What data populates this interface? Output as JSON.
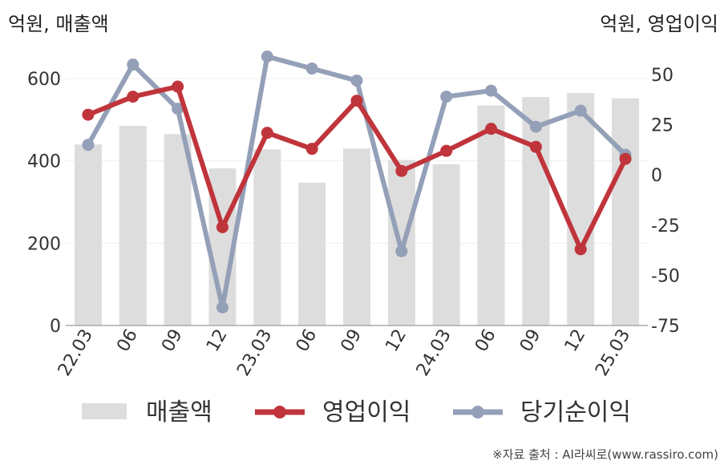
{
  "chart_data": {
    "type": "bar+line",
    "left_unit": "억원, 매출액",
    "right_unit": "억원, 영업이익",
    "categories": [
      "22.03",
      "06",
      "09",
      "12",
      "23.03",
      "06",
      "09",
      "12",
      "24.03",
      "06",
      "09",
      "12",
      "25.03"
    ],
    "left_axis": {
      "ylim": [
        0,
        600
      ],
      "ticks": [
        "0",
        "200",
        "400",
        "600"
      ]
    },
    "right_axis": {
      "ylim": [
        -75,
        60
      ],
      "ticks": [
        "50",
        "25",
        "0",
        "-25",
        "-50",
        "-75"
      ]
    },
    "series": [
      {
        "name": "매출액",
        "type": "bar",
        "axis": "left",
        "color": "#dddddd",
        "values": [
          440,
          485,
          465,
          382,
          428,
          347,
          430,
          402,
          392,
          535,
          555,
          565,
          552
        ]
      },
      {
        "name": "영업이익",
        "type": "line",
        "axis": "right",
        "color": "#c0343b",
        "values": [
          30,
          39,
          44,
          -26,
          21,
          13,
          37,
          2,
          12,
          23,
          14,
          -37,
          8
        ]
      },
      {
        "name": "당기순이익",
        "type": "line",
        "axis": "right",
        "color": "#94a0b8",
        "values": [
          15,
          55,
          33,
          -66,
          59,
          53,
          47,
          -38,
          39,
          42,
          24,
          32,
          10
        ]
      }
    ],
    "grid": true,
    "legend": "bottom"
  },
  "source": "※자료 출처 : AI라씨로(www.rassiro.com)"
}
